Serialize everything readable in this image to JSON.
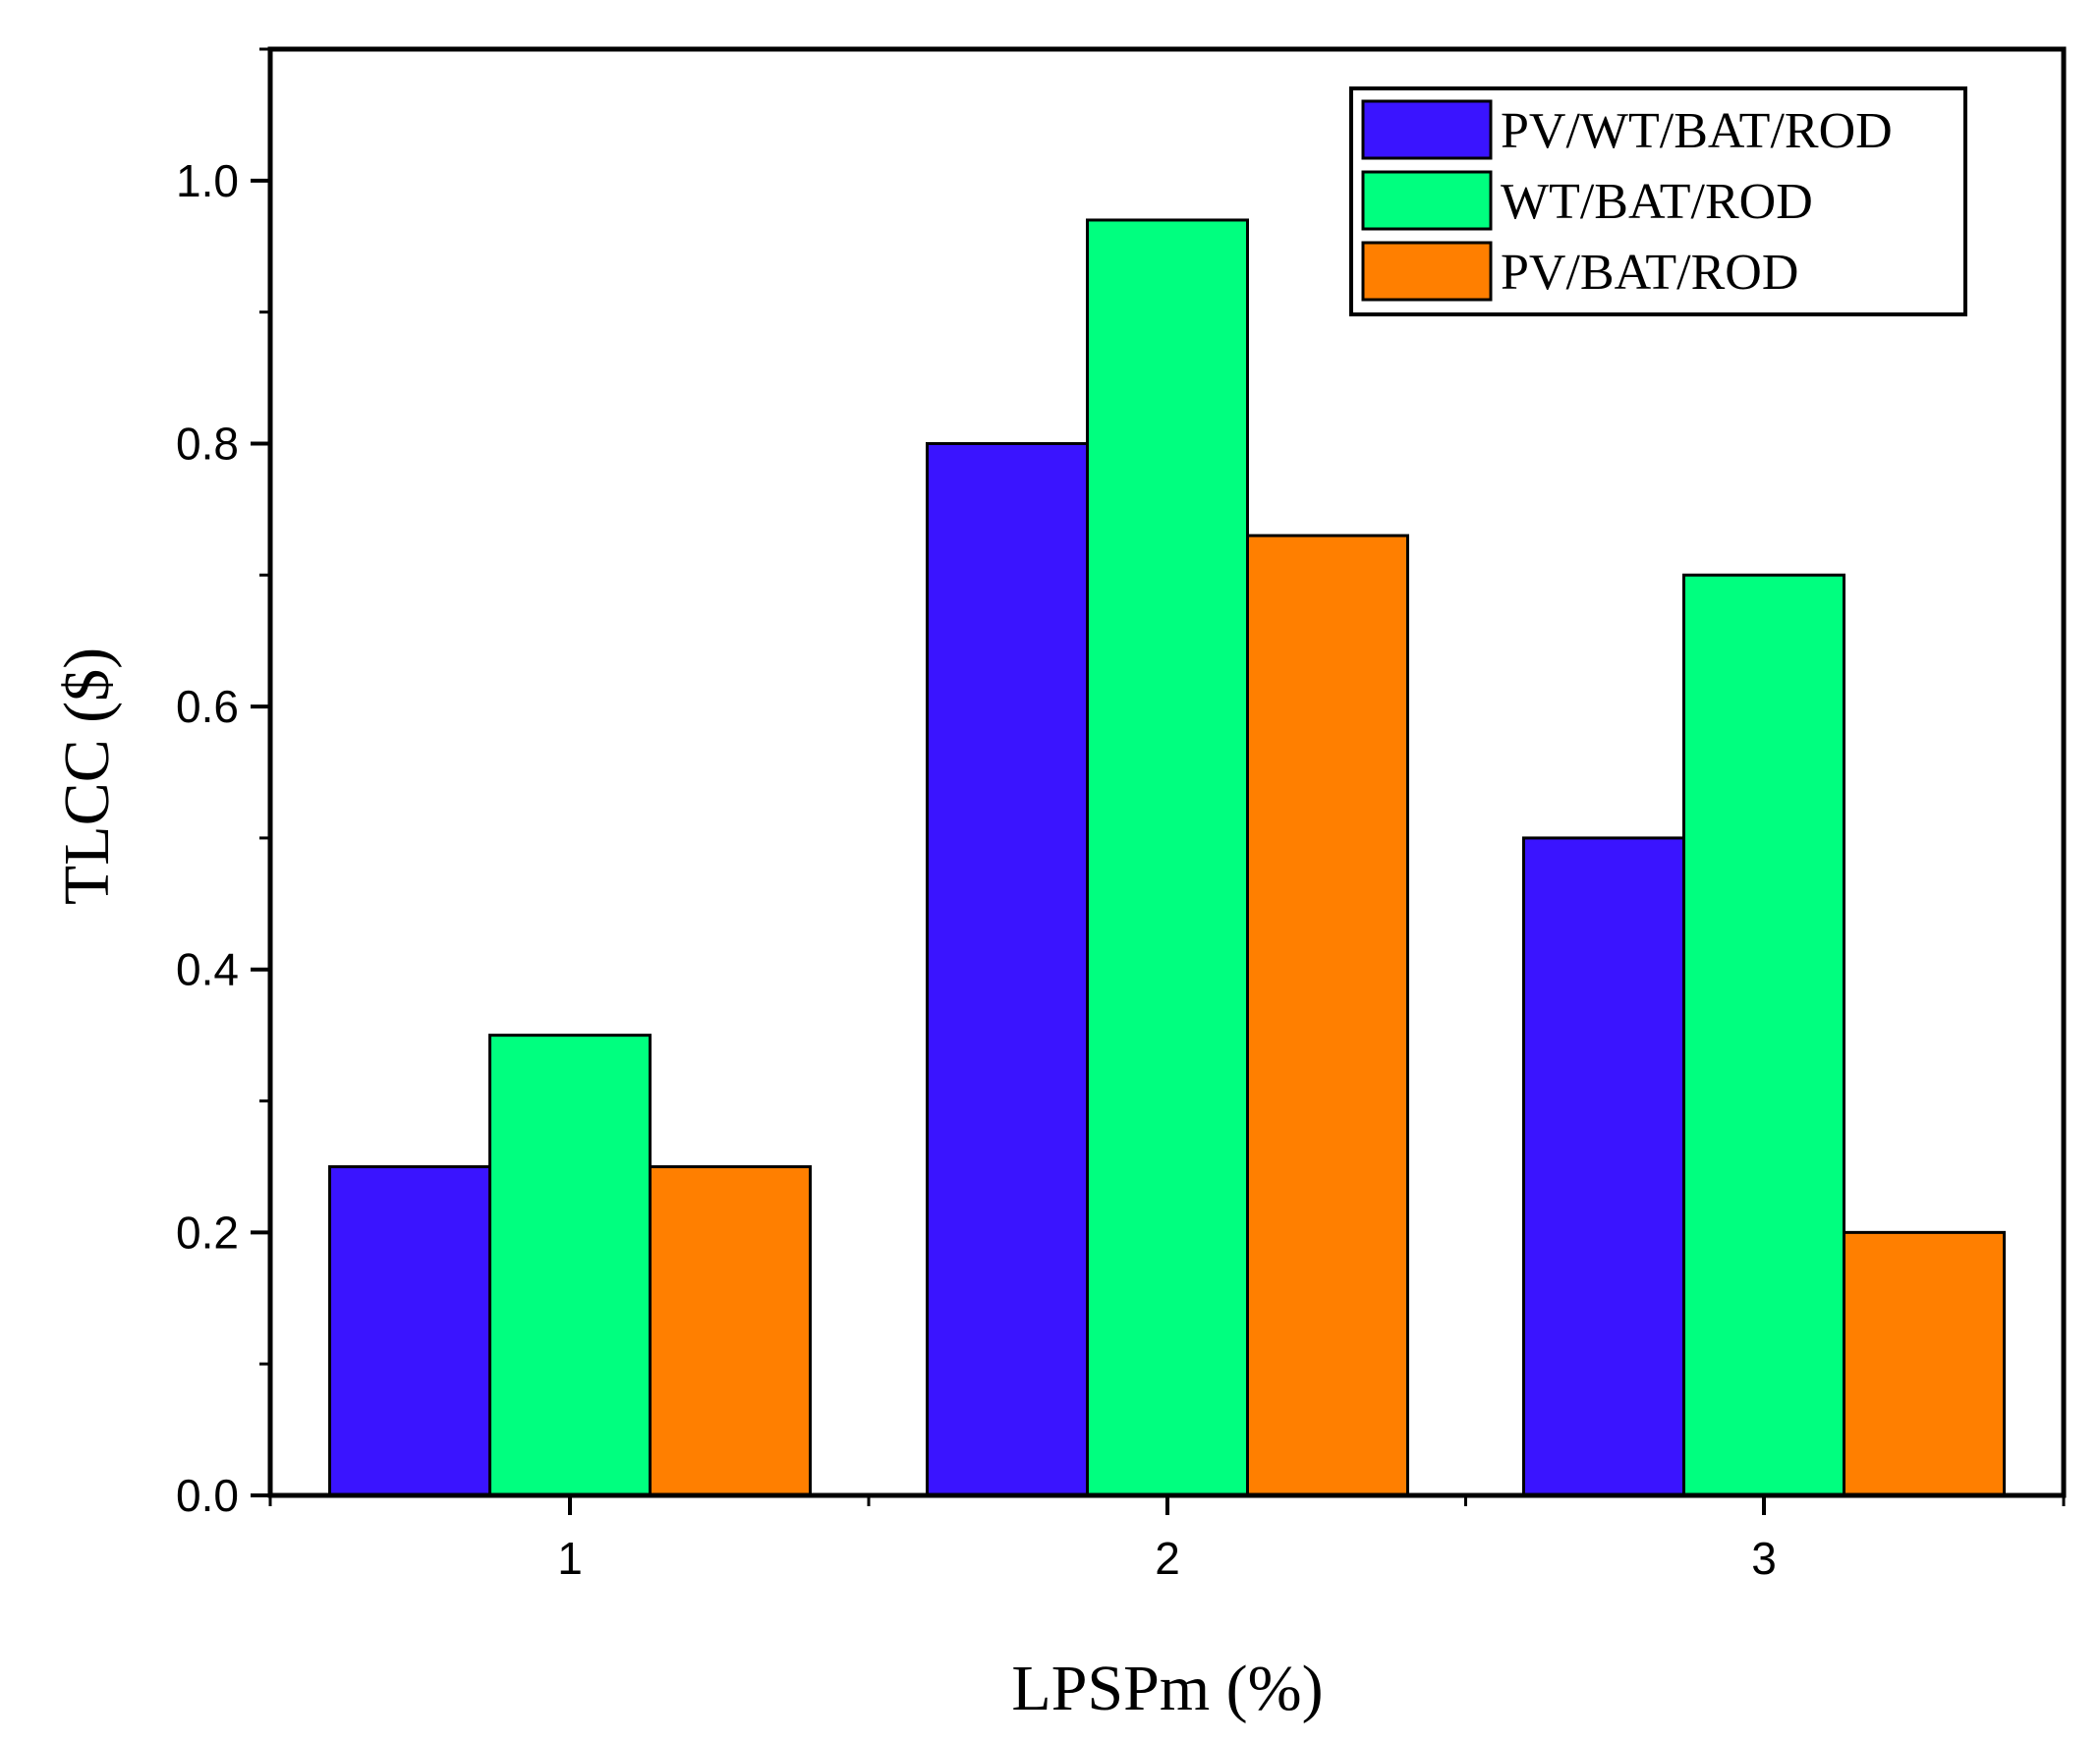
{
  "chart_data": {
    "type": "bar",
    "categories": [
      "1",
      "2",
      "3"
    ],
    "series": [
      {
        "name": "PV/WT/BAT/ROD",
        "color": "#3a14ff",
        "values": [
          0.25,
          0.8,
          0.5
        ]
      },
      {
        "name": "WT/BAT/ROD",
        "color": "#00ff7f",
        "values": [
          0.35,
          0.97,
          0.7
        ]
      },
      {
        "name": "PV/BAT/ROD",
        "color": "#ff7f00",
        "values": [
          0.25,
          0.73,
          0.2
        ]
      }
    ],
    "xlabel": "LPSPm (%)",
    "ylabel": "TLCC ($)",
    "ylim": [
      0,
      1.1
    ],
    "yticks": [
      "0.0",
      "0.2",
      "0.4",
      "0.6",
      "0.8",
      "1.0"
    ],
    "grid": false,
    "legend_position": "top-right"
  }
}
